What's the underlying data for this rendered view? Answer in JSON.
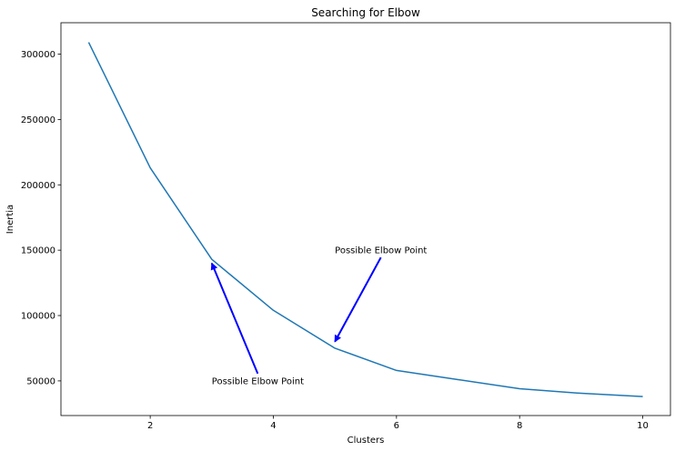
{
  "chart_data": {
    "type": "line",
    "title": "Searching for Elbow",
    "xlabel": "Clusters",
    "ylabel": "Inertia",
    "xlim": [
      0.55,
      10.45
    ],
    "ylim": [
      23500,
      324000
    ],
    "xticks": [
      2,
      4,
      6,
      8,
      10
    ],
    "xtick_labels": [
      "2",
      "4",
      "6",
      "8",
      "10"
    ],
    "yticks": [
      50000,
      100000,
      150000,
      200000,
      250000,
      300000
    ],
    "ytick_labels": [
      "50000",
      "100000",
      "150000",
      "200000",
      "250000",
      "300000"
    ],
    "grid": false,
    "series": [
      {
        "color": "#1f77b4",
        "x": [
          1,
          2,
          3,
          4,
          5,
          6,
          7,
          8,
          9,
          10
        ],
        "y": [
          309000,
          213000,
          143000,
          104000,
          75000,
          58000,
          51000,
          44000,
          40500,
          38000
        ]
      }
    ],
    "annotations": [
      {
        "text": "Possible Elbow Point",
        "xy": [
          3,
          140000
        ],
        "xytext": [
          3,
          50000
        ],
        "arrow_color": "#0000ff"
      },
      {
        "text": "Possible Elbow Point",
        "xy": [
          5,
          80000
        ],
        "xytext": [
          5,
          150000
        ],
        "arrow_color": "#0000ff"
      }
    ]
  }
}
